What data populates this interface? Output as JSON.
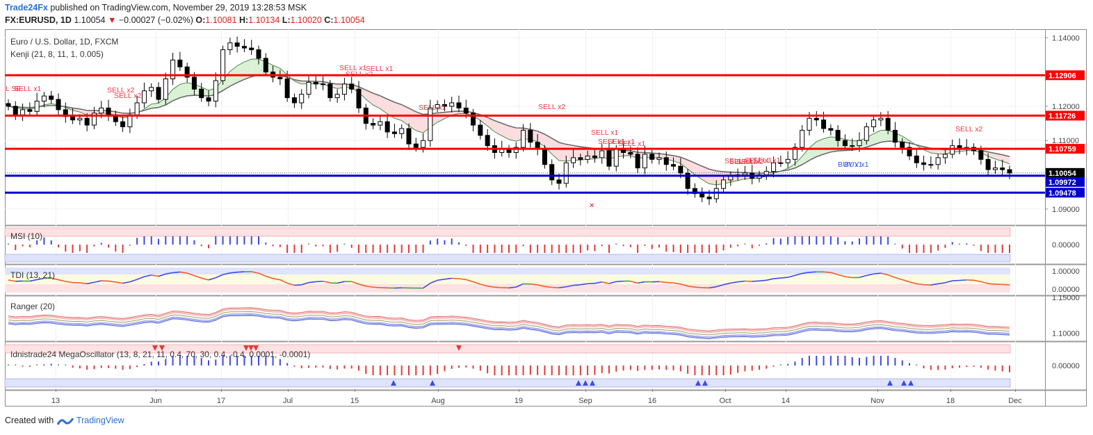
{
  "header": {
    "publisher": "Trade24Fx",
    "published_text": "published on TradingView.com, November 29, 2019 13:28:53 MSK",
    "symbol": "FX:EURUSD, 1D",
    "last": "1.10054",
    "change": "−0.00027 (−0.02%)",
    "o_label": "O:",
    "o_val": "1.10081",
    "h_label": "H:",
    "h_val": "1.10134",
    "l_label": "L:",
    "l_val": "1.10020",
    "c_label": "C:",
    "c_val": "1.10054"
  },
  "footer": {
    "created_with": "Created with",
    "brand": "TradingView"
  },
  "colors": {
    "up": "#ffffff",
    "down": "#000000",
    "red_line": "#ff0000",
    "blue_line": "#0000cc",
    "sell": "#f23645",
    "buy": "#3b57e8"
  },
  "chart_data": [
    {
      "type": "candlestick",
      "title": "Euro / U.S. Dollar, 1D, FXCM",
      "subtitle": "Kenji (21, 8, 11, 1, 0.005)",
      "x_ticks": [
        "13",
        "Jun",
        "17",
        "Jul",
        "15",
        "Aug",
        "19",
        "Sep",
        "16",
        "Oct",
        "14",
        "Nov",
        "18",
        "Dec"
      ],
      "y_ticks": [
        "1.14000",
        "1.12000",
        "1.11000",
        "1.09000"
      ],
      "ylim": [
        1.0855,
        1.1425
      ],
      "horizontal_levels": [
        {
          "value": 1.12906,
          "label": "1.12906",
          "color": "red"
        },
        {
          "value": 1.11726,
          "label": "1.11726",
          "color": "red"
        },
        {
          "value": 1.10759,
          "label": "1.10759",
          "color": "red"
        },
        {
          "value": 1.10054,
          "label": "1.10054",
          "color": "black"
        },
        {
          "value": 1.09972,
          "label": "1.09972",
          "color": "blue"
        },
        {
          "value": 1.09478,
          "label": "1.09478",
          "color": "blue"
        }
      ],
      "closes": [
        1.12,
        1.1175,
        1.119,
        1.1185,
        1.1215,
        1.123,
        1.122,
        1.119,
        1.117,
        1.116,
        1.1165,
        1.1145,
        1.118,
        1.1195,
        1.1175,
        1.1155,
        1.114,
        1.1175,
        1.121,
        1.1245,
        1.1255,
        1.122,
        1.128,
        1.1335,
        1.1315,
        1.1285,
        1.125,
        1.1225,
        1.1215,
        1.1275,
        1.1365,
        1.1385,
        1.1375,
        1.137,
        1.1365,
        1.134,
        1.13,
        1.1285,
        1.128,
        1.1225,
        1.121,
        1.1235,
        1.127,
        1.1265,
        1.1265,
        1.1225,
        1.1235,
        1.1265,
        1.125,
        1.1195,
        1.115,
        1.1145,
        1.1155,
        1.1125,
        1.112,
        1.1135,
        1.109,
        1.108,
        1.11,
        1.1195,
        1.1205,
        1.12,
        1.121,
        1.1195,
        1.118,
        1.1145,
        1.1115,
        1.1085,
        1.1065,
        1.1075,
        1.1065,
        1.108,
        1.113,
        1.1095,
        1.1075,
        1.103,
        1.0985,
        1.0975,
        1.1035,
        1.105,
        1.1045,
        1.1055,
        1.105,
        1.107,
        1.1025,
        1.1075,
        1.1065,
        1.106,
        1.102,
        1.106,
        1.1045,
        1.105,
        1.103,
        1.1025,
        1.1005,
        1.096,
        1.0945,
        1.0935,
        1.093,
        1.096,
        1.0985,
        1.0995,
        1.1,
        1.1005,
        1.099,
        1.1,
        1.101,
        1.1035,
        1.1035,
        1.1045,
        1.108,
        1.113,
        1.1165,
        1.116,
        1.1135,
        1.113,
        1.11,
        1.1085,
        1.1085,
        1.11,
        1.114,
        1.116,
        1.1165,
        1.113,
        1.1095,
        1.108,
        1.1055,
        1.1035,
        1.103,
        1.103,
        1.105,
        1.106,
        1.1085,
        1.1075,
        1.108,
        1.107,
        1.1045,
        1.1015,
        1.102,
        1.1015,
        1.1005
      ]
    },
    {
      "type": "bar",
      "title": "MSI (10)",
      "y_ticks": [
        "0.00000"
      ]
    },
    {
      "type": "line",
      "title": "TDI (13, 21)",
      "y_ticks": [
        "1.00000",
        "0.00000"
      ]
    },
    {
      "type": "line",
      "title": "Ranger (20)",
      "y_ticks": [
        "1.15000",
        "1.10000"
      ]
    },
    {
      "type": "bar",
      "title": "Idnistrade24 MegaOscillator (13, 8, 21, 11, 0.4, 70, 30, 0.4, -0.4, 0.0001, -0.0001)",
      "y_ticks": [
        "0.00000"
      ]
    }
  ],
  "signals": {
    "sell": [
      "L SE",
      "SELL x1",
      "SELL x2",
      "SELL x2",
      "SELL x1",
      "SELL x2",
      "SELL x1",
      "SELL x1",
      "SELL x2",
      "SELL x1",
      "SELL x1",
      "SELL x1",
      "SELL x1",
      "SELL x1",
      "SELL x1",
      "SELL x2",
      "SELL x1",
      "SELL x1",
      "SELL x2"
    ],
    "buy": [
      "BUY x1",
      "BUY x1"
    ]
  }
}
